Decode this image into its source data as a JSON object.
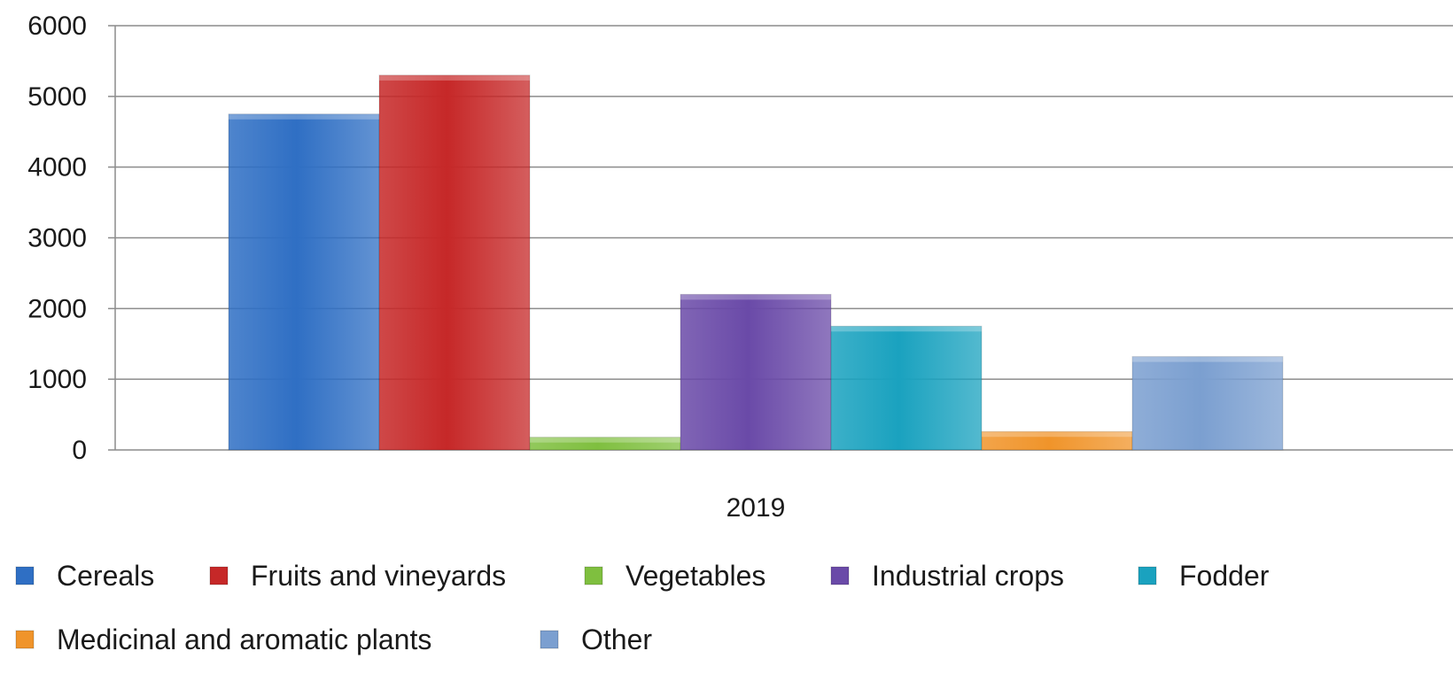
{
  "chart_data": {
    "type": "bar",
    "categories": [
      "2019"
    ],
    "series": [
      {
        "name": "Cereals",
        "values": [
          4750
        ],
        "color": "#2f6fc4"
      },
      {
        "name": "Fruits and vineyards",
        "values": [
          5300
        ],
        "color": "#c62828"
      },
      {
        "name": "Vegetables",
        "values": [
          180
        ],
        "color": "#7fbf3f"
      },
      {
        "name": "Industrial crops",
        "values": [
          2200
        ],
        "color": "#6a4aa8"
      },
      {
        "name": "Fodder",
        "values": [
          1750
        ],
        "color": "#1aa2bf"
      },
      {
        "name": "Medicinal and aromatic plants",
        "values": [
          260
        ],
        "color": "#f0942a"
      },
      {
        "name": "Other",
        "values": [
          1320
        ],
        "color": "#7b9fd0"
      }
    ],
    "ylim": [
      0,
      6000
    ],
    "yticks": [
      0,
      1000,
      2000,
      3000,
      4000,
      5000,
      6000
    ],
    "title": "",
    "xlabel": "",
    "ylabel": "",
    "grid": "horizontal",
    "legend_position": "bottom"
  }
}
